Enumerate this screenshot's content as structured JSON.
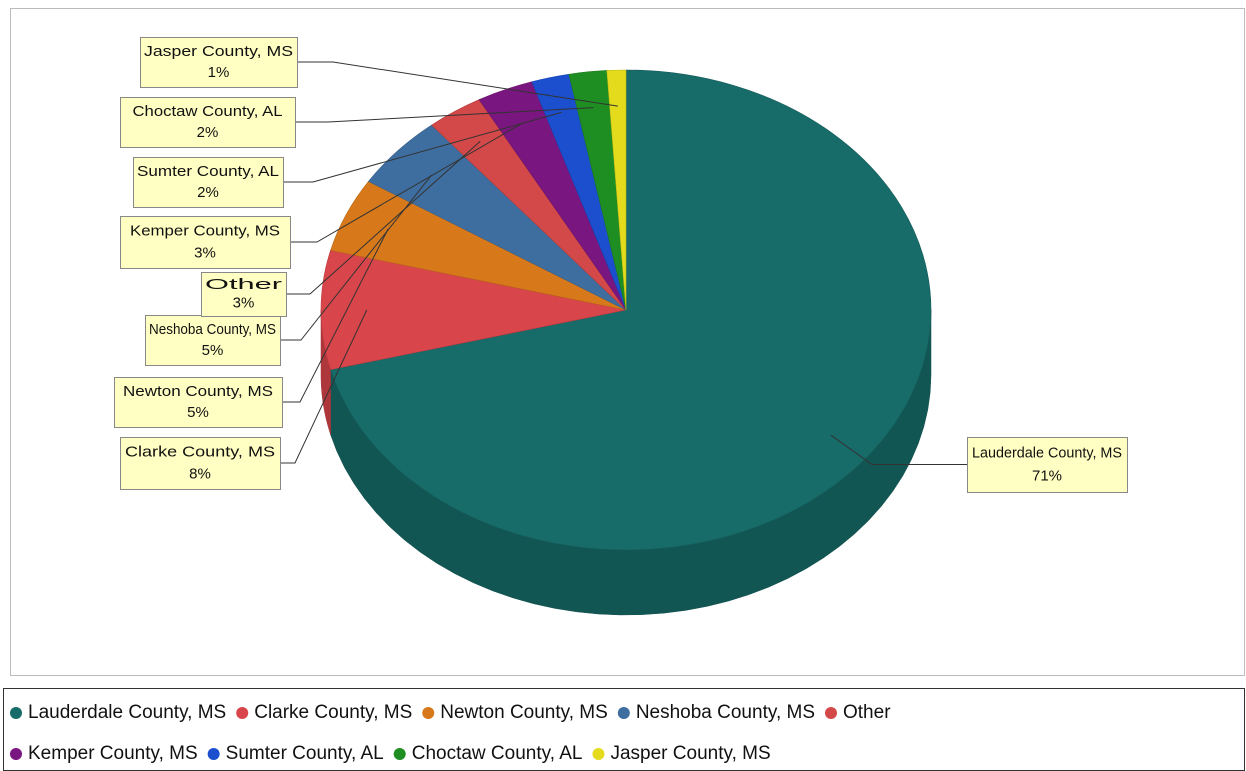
{
  "chart_data": {
    "type": "pie",
    "categories": [
      "Lauderdale County, MS",
      "Clarke County, MS",
      "Newton County, MS",
      "Neshoba County, MS",
      "Other",
      "Kemper County, MS",
      "Sumter County, AL",
      "Choctaw County, AL",
      "Jasper County, MS"
    ],
    "values": [
      71,
      8,
      5,
      5,
      3,
      3,
      2,
      2,
      1
    ],
    "value_labels": [
      "71%",
      "8%",
      "5%",
      "5%",
      "3%",
      "3%",
      "2%",
      "2%",
      "1%"
    ],
    "colors": [
      "#176b69",
      "#d8454a",
      "#d7791b",
      "#3e6ea0",
      "#d34848",
      "#7a167f",
      "#1b4fce",
      "#1f8e22",
      "#e3db1c"
    ],
    "legend": "bottom"
  }
}
